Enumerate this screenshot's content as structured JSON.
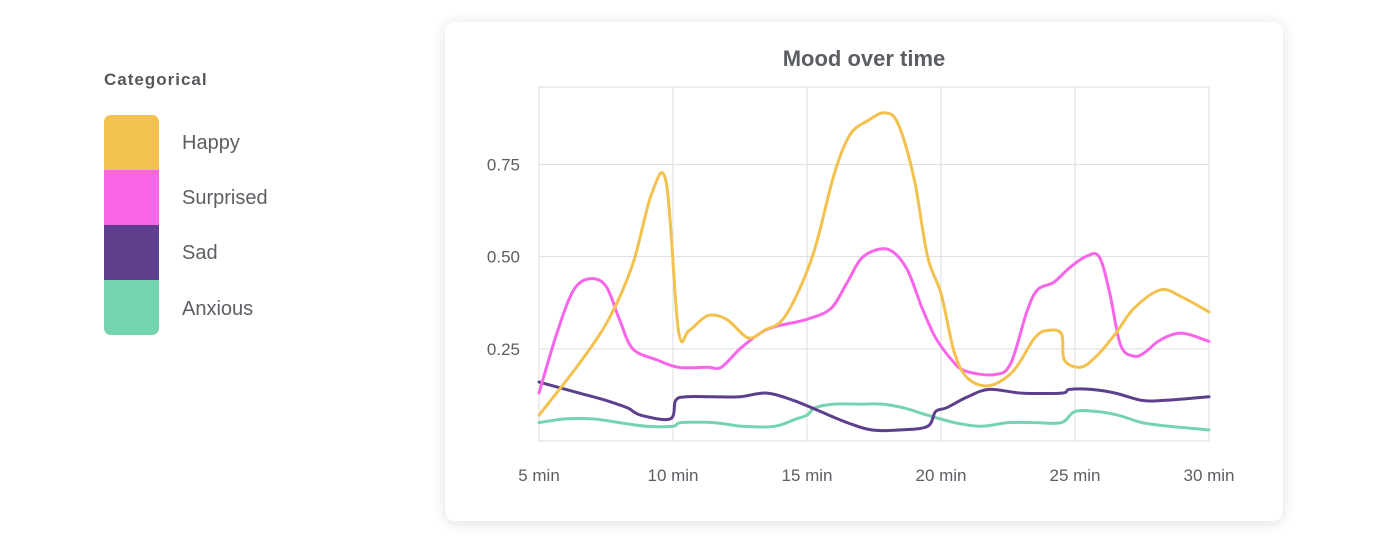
{
  "legend": {
    "title": "Categorical",
    "items": [
      {
        "label": "Happy",
        "color": "#F2C14E"
      },
      {
        "label": "Surprised",
        "color": "#F865E8"
      },
      {
        "label": "Sad",
        "color": "#5E3F8E"
      },
      {
        "label": "Anxious",
        "color": "#74D4AE"
      }
    ]
  },
  "chart_data": {
    "type": "line",
    "title": "Mood over time",
    "xlabel": "",
    "ylabel": "",
    "x_unit": "min",
    "xlim": [
      5,
      30
    ],
    "ylim": [
      0,
      0.96
    ],
    "x_ticks": [
      5,
      10,
      15,
      20,
      25,
      30
    ],
    "x_tick_labels": [
      "5 min",
      "10 min",
      "15 min",
      "20 min",
      "25 min",
      "30 min"
    ],
    "y_ticks": [
      0.25,
      0.5,
      0.75
    ],
    "y_tick_labels": [
      "0.25",
      "0.50",
      "0.75"
    ],
    "grid": true,
    "legend": "left",
    "series": [
      {
        "name": "Happy",
        "color": "#F2C14E",
        "points": [
          [
            5,
            0.07
          ],
          [
            6.5,
            0.21
          ],
          [
            7.6,
            0.33
          ],
          [
            8.5,
            0.48
          ],
          [
            9.2,
            0.67
          ],
          [
            9.75,
            0.7
          ],
          [
            10.2,
            0.3
          ],
          [
            10.6,
            0.3
          ],
          [
            11.3,
            0.34
          ],
          [
            12,
            0.33
          ],
          [
            12.8,
            0.28
          ],
          [
            13.4,
            0.3
          ],
          [
            14.2,
            0.34
          ],
          [
            15.2,
            0.5
          ],
          [
            16,
            0.72
          ],
          [
            16.6,
            0.83
          ],
          [
            17.3,
            0.87
          ],
          [
            17.9,
            0.89
          ],
          [
            18.4,
            0.86
          ],
          [
            19,
            0.71
          ],
          [
            19.5,
            0.5
          ],
          [
            20,
            0.4
          ],
          [
            20.5,
            0.24
          ],
          [
            21,
            0.17
          ],
          [
            21.8,
            0.15
          ],
          [
            22.7,
            0.19
          ],
          [
            23.5,
            0.28
          ],
          [
            24,
            0.3
          ],
          [
            24.5,
            0.29
          ],
          [
            24.6,
            0.22
          ],
          [
            25.2,
            0.2
          ],
          [
            25.8,
            0.23
          ],
          [
            26.5,
            0.29
          ],
          [
            27.2,
            0.36
          ],
          [
            28.2,
            0.41
          ],
          [
            29,
            0.39
          ],
          [
            30,
            0.35
          ]
        ]
      },
      {
        "name": "Surprised",
        "color": "#F865E8",
        "points": [
          [
            5,
            0.13
          ],
          [
            5.7,
            0.3
          ],
          [
            6.3,
            0.41
          ],
          [
            6.9,
            0.44
          ],
          [
            7.5,
            0.42
          ],
          [
            8,
            0.33
          ],
          [
            8.5,
            0.25
          ],
          [
            9.4,
            0.22
          ],
          [
            10.2,
            0.2
          ],
          [
            11.3,
            0.2
          ],
          [
            11.8,
            0.2
          ],
          [
            12.5,
            0.25
          ],
          [
            13.2,
            0.29
          ],
          [
            13.8,
            0.31
          ],
          [
            15,
            0.33
          ],
          [
            15.9,
            0.36
          ],
          [
            16.5,
            0.43
          ],
          [
            17.1,
            0.5
          ],
          [
            18,
            0.52
          ],
          [
            18.7,
            0.47
          ],
          [
            19.3,
            0.36
          ],
          [
            19.8,
            0.28
          ],
          [
            20.4,
            0.22
          ],
          [
            20.9,
            0.19
          ],
          [
            22,
            0.18
          ],
          [
            22.6,
            0.21
          ],
          [
            23.2,
            0.35
          ],
          [
            23.6,
            0.41
          ],
          [
            24.2,
            0.43
          ],
          [
            24.8,
            0.47
          ],
          [
            25.4,
            0.5
          ],
          [
            25.9,
            0.5
          ],
          [
            26.3,
            0.4
          ],
          [
            26.7,
            0.26
          ],
          [
            27.2,
            0.23
          ],
          [
            27.6,
            0.24
          ],
          [
            28.1,
            0.27
          ],
          [
            28.7,
            0.29
          ],
          [
            29.2,
            0.29
          ],
          [
            30,
            0.27
          ]
        ]
      },
      {
        "name": "Sad",
        "color": "#5E3F8E",
        "points": [
          [
            5,
            0.16
          ],
          [
            6.5,
            0.13
          ],
          [
            7.5,
            0.11
          ],
          [
            8.3,
            0.09
          ],
          [
            8.8,
            0.07
          ],
          [
            9.9,
            0.06
          ],
          [
            10.1,
            0.11
          ],
          [
            10.5,
            0.12
          ],
          [
            11.5,
            0.12
          ],
          [
            12.5,
            0.12
          ],
          [
            13.5,
            0.13
          ],
          [
            14.5,
            0.11
          ],
          [
            15.5,
            0.08
          ],
          [
            16.5,
            0.05
          ],
          [
            17.4,
            0.03
          ],
          [
            18.5,
            0.03
          ],
          [
            19.5,
            0.04
          ],
          [
            19.8,
            0.08
          ],
          [
            20.2,
            0.09
          ],
          [
            21,
            0.12
          ],
          [
            21.8,
            0.14
          ],
          [
            23,
            0.13
          ],
          [
            24.5,
            0.13
          ],
          [
            24.8,
            0.14
          ],
          [
            25.6,
            0.14
          ],
          [
            26.5,
            0.13
          ],
          [
            27.5,
            0.11
          ],
          [
            28.3,
            0.11
          ],
          [
            29.2,
            0.115
          ],
          [
            30,
            0.12
          ]
        ]
      },
      {
        "name": "Anxious",
        "color": "#74D4AE",
        "points": [
          [
            5,
            0.05
          ],
          [
            6,
            0.06
          ],
          [
            7,
            0.06
          ],
          [
            8,
            0.05
          ],
          [
            9,
            0.04
          ],
          [
            10,
            0.04
          ],
          [
            10.3,
            0.05
          ],
          [
            11.5,
            0.05
          ],
          [
            12.6,
            0.04
          ],
          [
            13.8,
            0.04
          ],
          [
            14.6,
            0.06
          ],
          [
            15,
            0.07
          ],
          [
            15.3,
            0.09
          ],
          [
            16,
            0.1
          ],
          [
            17,
            0.1
          ],
          [
            17.8,
            0.1
          ],
          [
            18.6,
            0.09
          ],
          [
            19.5,
            0.07
          ],
          [
            20.5,
            0.05
          ],
          [
            21.5,
            0.04
          ],
          [
            22.5,
            0.05
          ],
          [
            23.5,
            0.05
          ],
          [
            24.5,
            0.05
          ],
          [
            25,
            0.08
          ],
          [
            25.8,
            0.08
          ],
          [
            26.6,
            0.07
          ],
          [
            27.5,
            0.05
          ],
          [
            28.5,
            0.04
          ],
          [
            30,
            0.03
          ]
        ]
      }
    ]
  }
}
